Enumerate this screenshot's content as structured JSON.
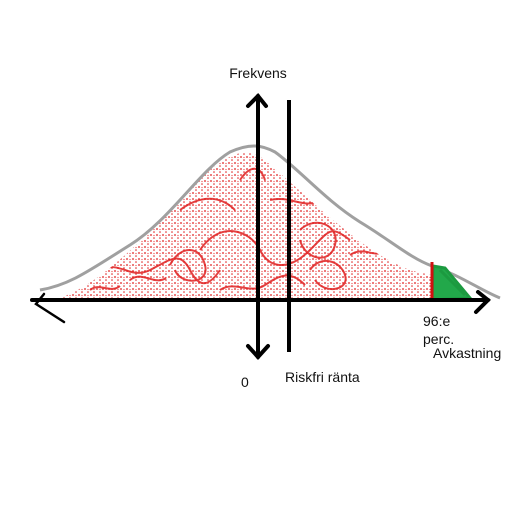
{
  "labels": {
    "y_axis": "Frekvens",
    "risk_free": "Riskfri ränta",
    "zero": "0",
    "percentile": [
      "96:e",
      "perc."
    ],
    "x_axis": "Avkastning"
  }
}
